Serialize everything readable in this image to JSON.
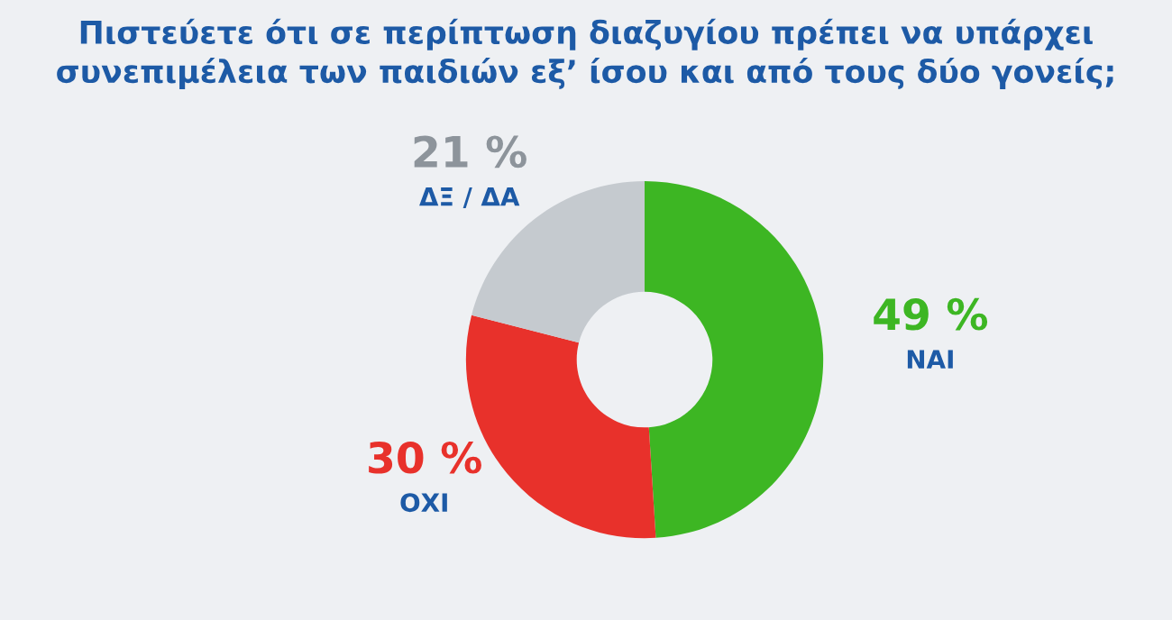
{
  "chart_data": {
    "type": "donut",
    "title": "Πιστεύετε ότι σε περίπτωση διαζυγίου πρέπει να υπάρχει\nσυνεπιμέλεια των παιδιών εξ’ ίσου και από τους δύο γονείς;",
    "categories": [
      "ΝΑΙ",
      "ΟΧΙ",
      "ΔΞ / ΔΑ"
    ],
    "values": [
      49,
      30,
      21
    ],
    "colors": [
      "#3db623",
      "#e8312b",
      "#c5cacf"
    ],
    "value_labels": [
      "49 %",
      "30 %",
      "21 %"
    ],
    "legend": false
  }
}
